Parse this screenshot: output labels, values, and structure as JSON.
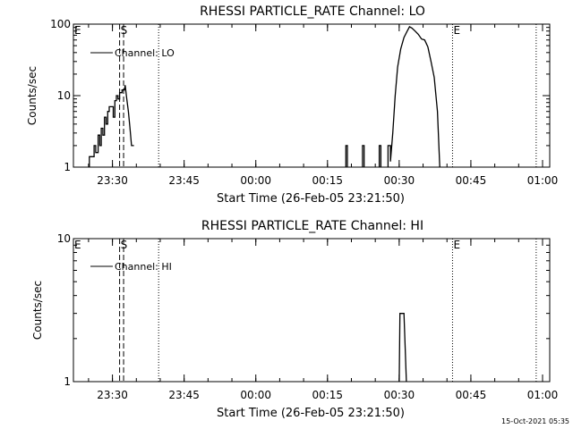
{
  "chart_data": [
    {
      "type": "line",
      "title": "RHESSI PARTICLE_RATE Channel: LO",
      "xlabel": "Start Time (26-Feb-05 23:21:50)",
      "ylabel": "Counts/sec",
      "yscale": "log",
      "xlim": [
        "23:21:50",
        "01:01:30"
      ],
      "ylim": [
        1,
        100
      ],
      "x_tick_labels": [
        "23:30",
        "23:45",
        "00:00",
        "00:15",
        "00:30",
        "00:45",
        "01:00"
      ],
      "y_tick_labels": [
        "1",
        "10",
        "100"
      ],
      "legend": {
        "placement": "top-left",
        "entries": [
          "Channel: LO"
        ]
      },
      "markers": [
        {
          "label": "E",
          "time": "23:21:50",
          "style": "dotted"
        },
        {
          "label": "S",
          "time": "23:31:30",
          "style": "dashed"
        },
        {
          "label": "",
          "time": "23:32:20",
          "style": "dashed"
        },
        {
          "label": "",
          "time": "23:39:40",
          "style": "dotted"
        },
        {
          "label": "E",
          "time": "00:41:10",
          "style": "dotted"
        },
        {
          "label": "",
          "time": "00:58:40",
          "style": "dotted"
        }
      ],
      "series": [
        {
          "segments": [
            [
              [
                "23:25:10",
                1
              ],
              [
                "23:25:10",
                1.4
              ],
              [
                "23:26:10",
                1.4
              ],
              [
                "23:26:10",
                2
              ],
              [
                "23:26:30",
                2
              ],
              [
                "23:26:30",
                1.6
              ],
              [
                "23:27:00",
                1.6
              ],
              [
                "23:27:00",
                2.8
              ],
              [
                "23:27:20",
                2.8
              ],
              [
                "23:27:20",
                2
              ],
              [
                "23:27:40",
                2
              ],
              [
                "23:27:40",
                3.5
              ],
              [
                "23:28:00",
                3.5
              ],
              [
                "23:28:00",
                2.8
              ],
              [
                "23:28:20",
                2.8
              ],
              [
                "23:28:20",
                5
              ],
              [
                "23:28:40",
                5
              ],
              [
                "23:28:40",
                4
              ],
              [
                "23:29:00",
                4
              ],
              [
                "23:29:00",
                6
              ],
              [
                "23:29:20",
                6
              ],
              [
                "23:29:20",
                7
              ],
              [
                "23:30:10",
                7
              ],
              [
                "23:30:10",
                5
              ],
              [
                "23:30:30",
                5
              ],
              [
                "23:30:30",
                8.5
              ],
              [
                "23:30:50",
                8.5
              ],
              [
                "23:30:50",
                10
              ],
              [
                "23:31:10",
                10
              ],
              [
                "23:31:10",
                9
              ],
              [
                "23:31:30",
                9
              ],
              [
                "23:31:30",
                11
              ],
              [
                "23:32:00",
                11
              ],
              [
                "23:32:00",
                12
              ],
              [
                "23:32:30",
                12
              ],
              [
                "23:32:40",
                14
              ],
              [
                "23:33:00",
                9
              ],
              [
                "23:33:20",
                6
              ],
              [
                "23:33:40",
                3.5
              ],
              [
                "23:34:00",
                2
              ],
              [
                "23:34:30",
                2
              ]
            ],
            [
              [
                "00:18:50",
                1
              ],
              [
                "00:18:50",
                2
              ],
              [
                "00:19:10",
                2
              ],
              [
                "00:19:10",
                1
              ]
            ],
            [
              [
                "00:22:20",
                1
              ],
              [
                "00:22:20",
                2
              ],
              [
                "00:22:40",
                2
              ],
              [
                "00:22:40",
                1
              ]
            ],
            [
              [
                "00:25:50",
                1
              ],
              [
                "00:25:50",
                2
              ],
              [
                "00:26:10",
                2
              ],
              [
                "00:26:10",
                1
              ]
            ],
            [
              [
                "00:27:40",
                1
              ],
              [
                "00:27:40",
                2
              ],
              [
                "00:28:10",
                2
              ],
              [
                "00:28:10",
                1.2
              ],
              [
                "00:28:40",
                3
              ],
              [
                "00:29:10",
                10
              ],
              [
                "00:29:40",
                25
              ],
              [
                "00:30:20",
                45
              ],
              [
                "00:31:00",
                65
              ],
              [
                "00:31:40",
                80
              ],
              [
                "00:32:10",
                92
              ],
              [
                "00:32:40",
                88
              ],
              [
                "00:33:20",
                80
              ],
              [
                "00:34:00",
                72
              ],
              [
                "00:34:40",
                62
              ],
              [
                "00:35:20",
                60
              ],
              [
                "00:36:00",
                48
              ],
              [
                "00:36:40",
                30
              ],
              [
                "00:37:20",
                18
              ],
              [
                "00:38:00",
                6
              ],
              [
                "00:38:30",
                1
              ]
            ]
          ]
        }
      ]
    },
    {
      "type": "line",
      "title": "RHESSI PARTICLE_RATE Channel: HI",
      "xlabel": "Start Time (26-Feb-05 23:21:50)",
      "ylabel": "Counts/sec",
      "yscale": "log",
      "xlim": [
        "23:21:50",
        "01:01:30"
      ],
      "ylim": [
        1,
        10
      ],
      "x_tick_labels": [
        "23:30",
        "23:45",
        "00:00",
        "00:15",
        "00:30",
        "00:45",
        "01:00"
      ],
      "y_tick_labels": [
        "1",
        "10"
      ],
      "legend": {
        "placement": "top-left",
        "entries": [
          "Channel: HI"
        ]
      },
      "markers": [
        {
          "label": "E",
          "time": "23:21:50",
          "style": "dotted"
        },
        {
          "label": "S",
          "time": "23:31:30",
          "style": "dashed"
        },
        {
          "label": "",
          "time": "23:32:20",
          "style": "dashed"
        },
        {
          "label": "",
          "time": "23:39:40",
          "style": "dotted"
        },
        {
          "label": "E",
          "time": "00:41:10",
          "style": "dotted"
        },
        {
          "label": "",
          "time": "00:58:40",
          "style": "dotted"
        }
      ],
      "series": [
        {
          "segments": [
            [
              [
                "00:30:00",
                1
              ],
              [
                "00:30:10",
                3
              ],
              [
                "00:31:00",
                3
              ],
              [
                "00:31:30",
                1
              ]
            ]
          ]
        }
      ]
    }
  ],
  "footer_timestamp": "15-Oct-2021 05:35"
}
